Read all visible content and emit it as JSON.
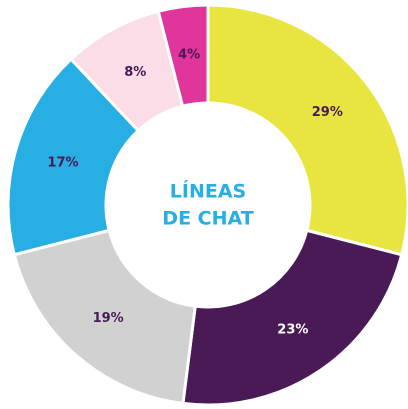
{
  "chart_data": {
    "type": "donut",
    "title": [
      "LÍNEAS",
      "DE CHAT"
    ],
    "categories": [
      null,
      null,
      null,
      null,
      null,
      null
    ],
    "values": [
      29,
      23,
      19,
      17,
      8,
      4
    ],
    "value_labels": [
      "29%",
      "23%",
      "19%",
      "17%",
      "8%",
      "4%"
    ],
    "colors": [
      "#e8e540",
      "#4a1a57",
      "#d1d1d1",
      "#27aee3",
      "#fadde6",
      "#e0359a"
    ],
    "title_color": "#27aee3"
  }
}
